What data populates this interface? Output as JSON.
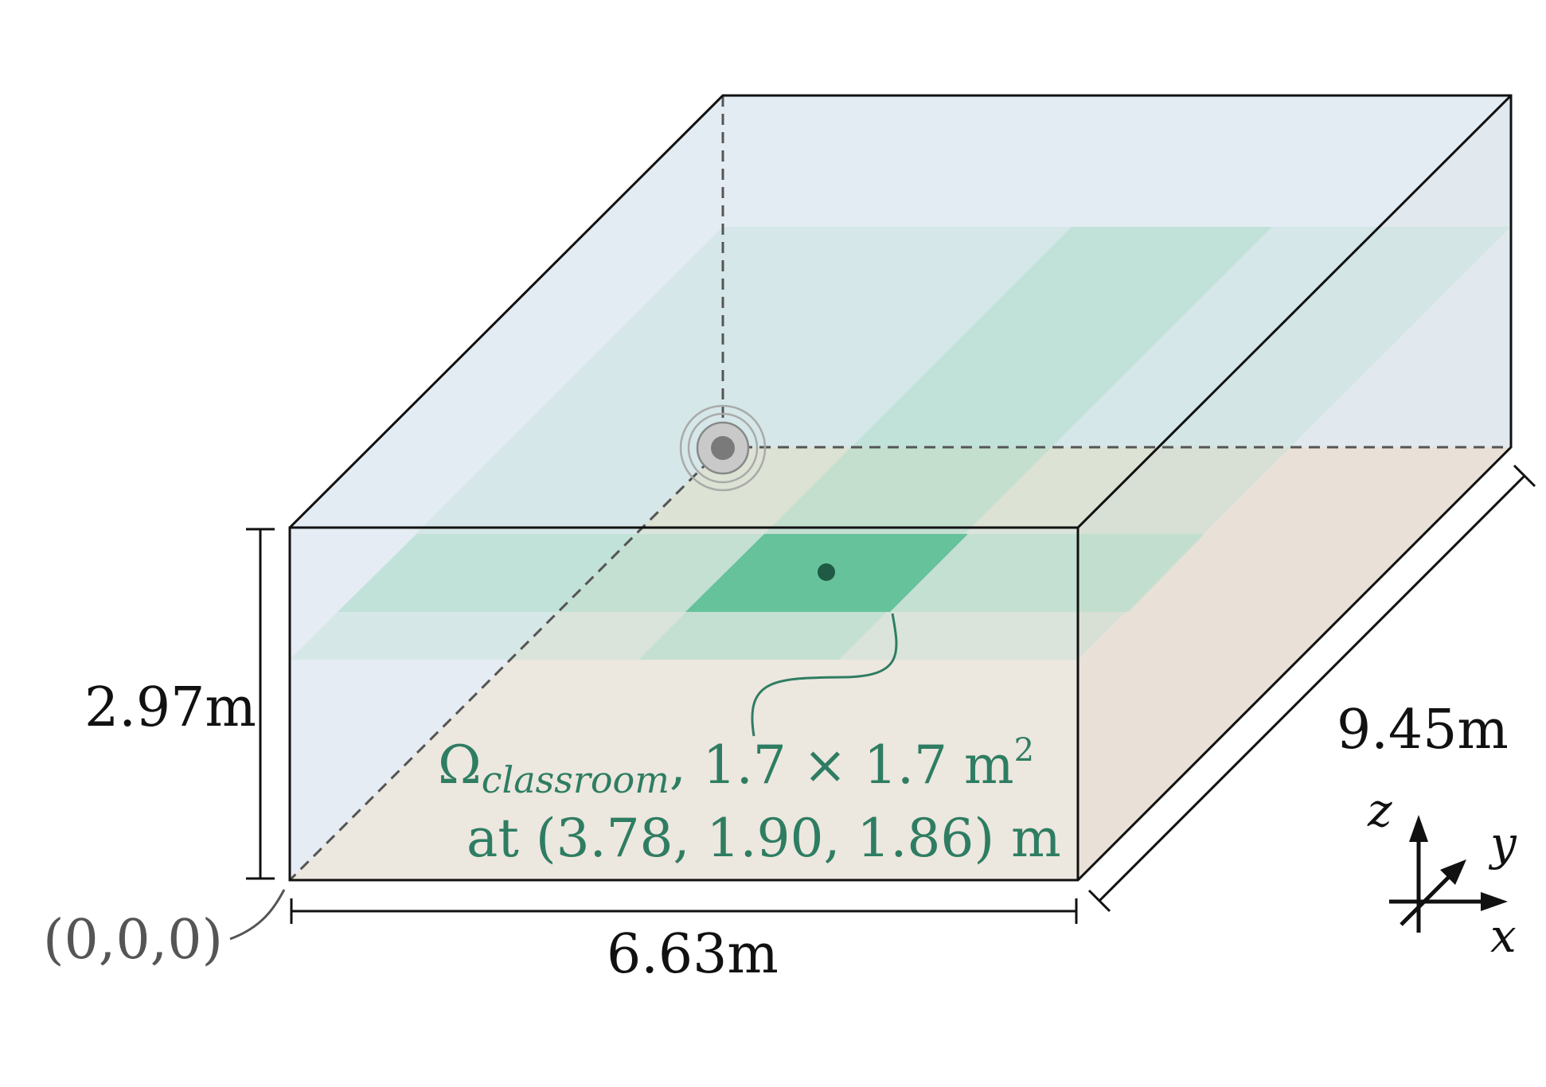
{
  "room": {
    "height_label": "2.97m",
    "width_label": "6.63m",
    "depth_label": "9.45m",
    "origin_label": "(0,0,0)"
  },
  "region": {
    "symbol": "Ω",
    "subscript": "classroom",
    "size_text": ", 1.7 × 1.7 m",
    "size_superscript": "2",
    "position_text": "at (3.78, 1.90, 1.86) m"
  },
  "axes": {
    "x": "x",
    "y": "y",
    "z": "z"
  },
  "colors": {
    "wall_fill": "#dbe6ef",
    "floor_fill": "#efe3d4",
    "region_green": "#5dbf95",
    "label_green": "#2e7d62",
    "source_gray": "#888888"
  }
}
